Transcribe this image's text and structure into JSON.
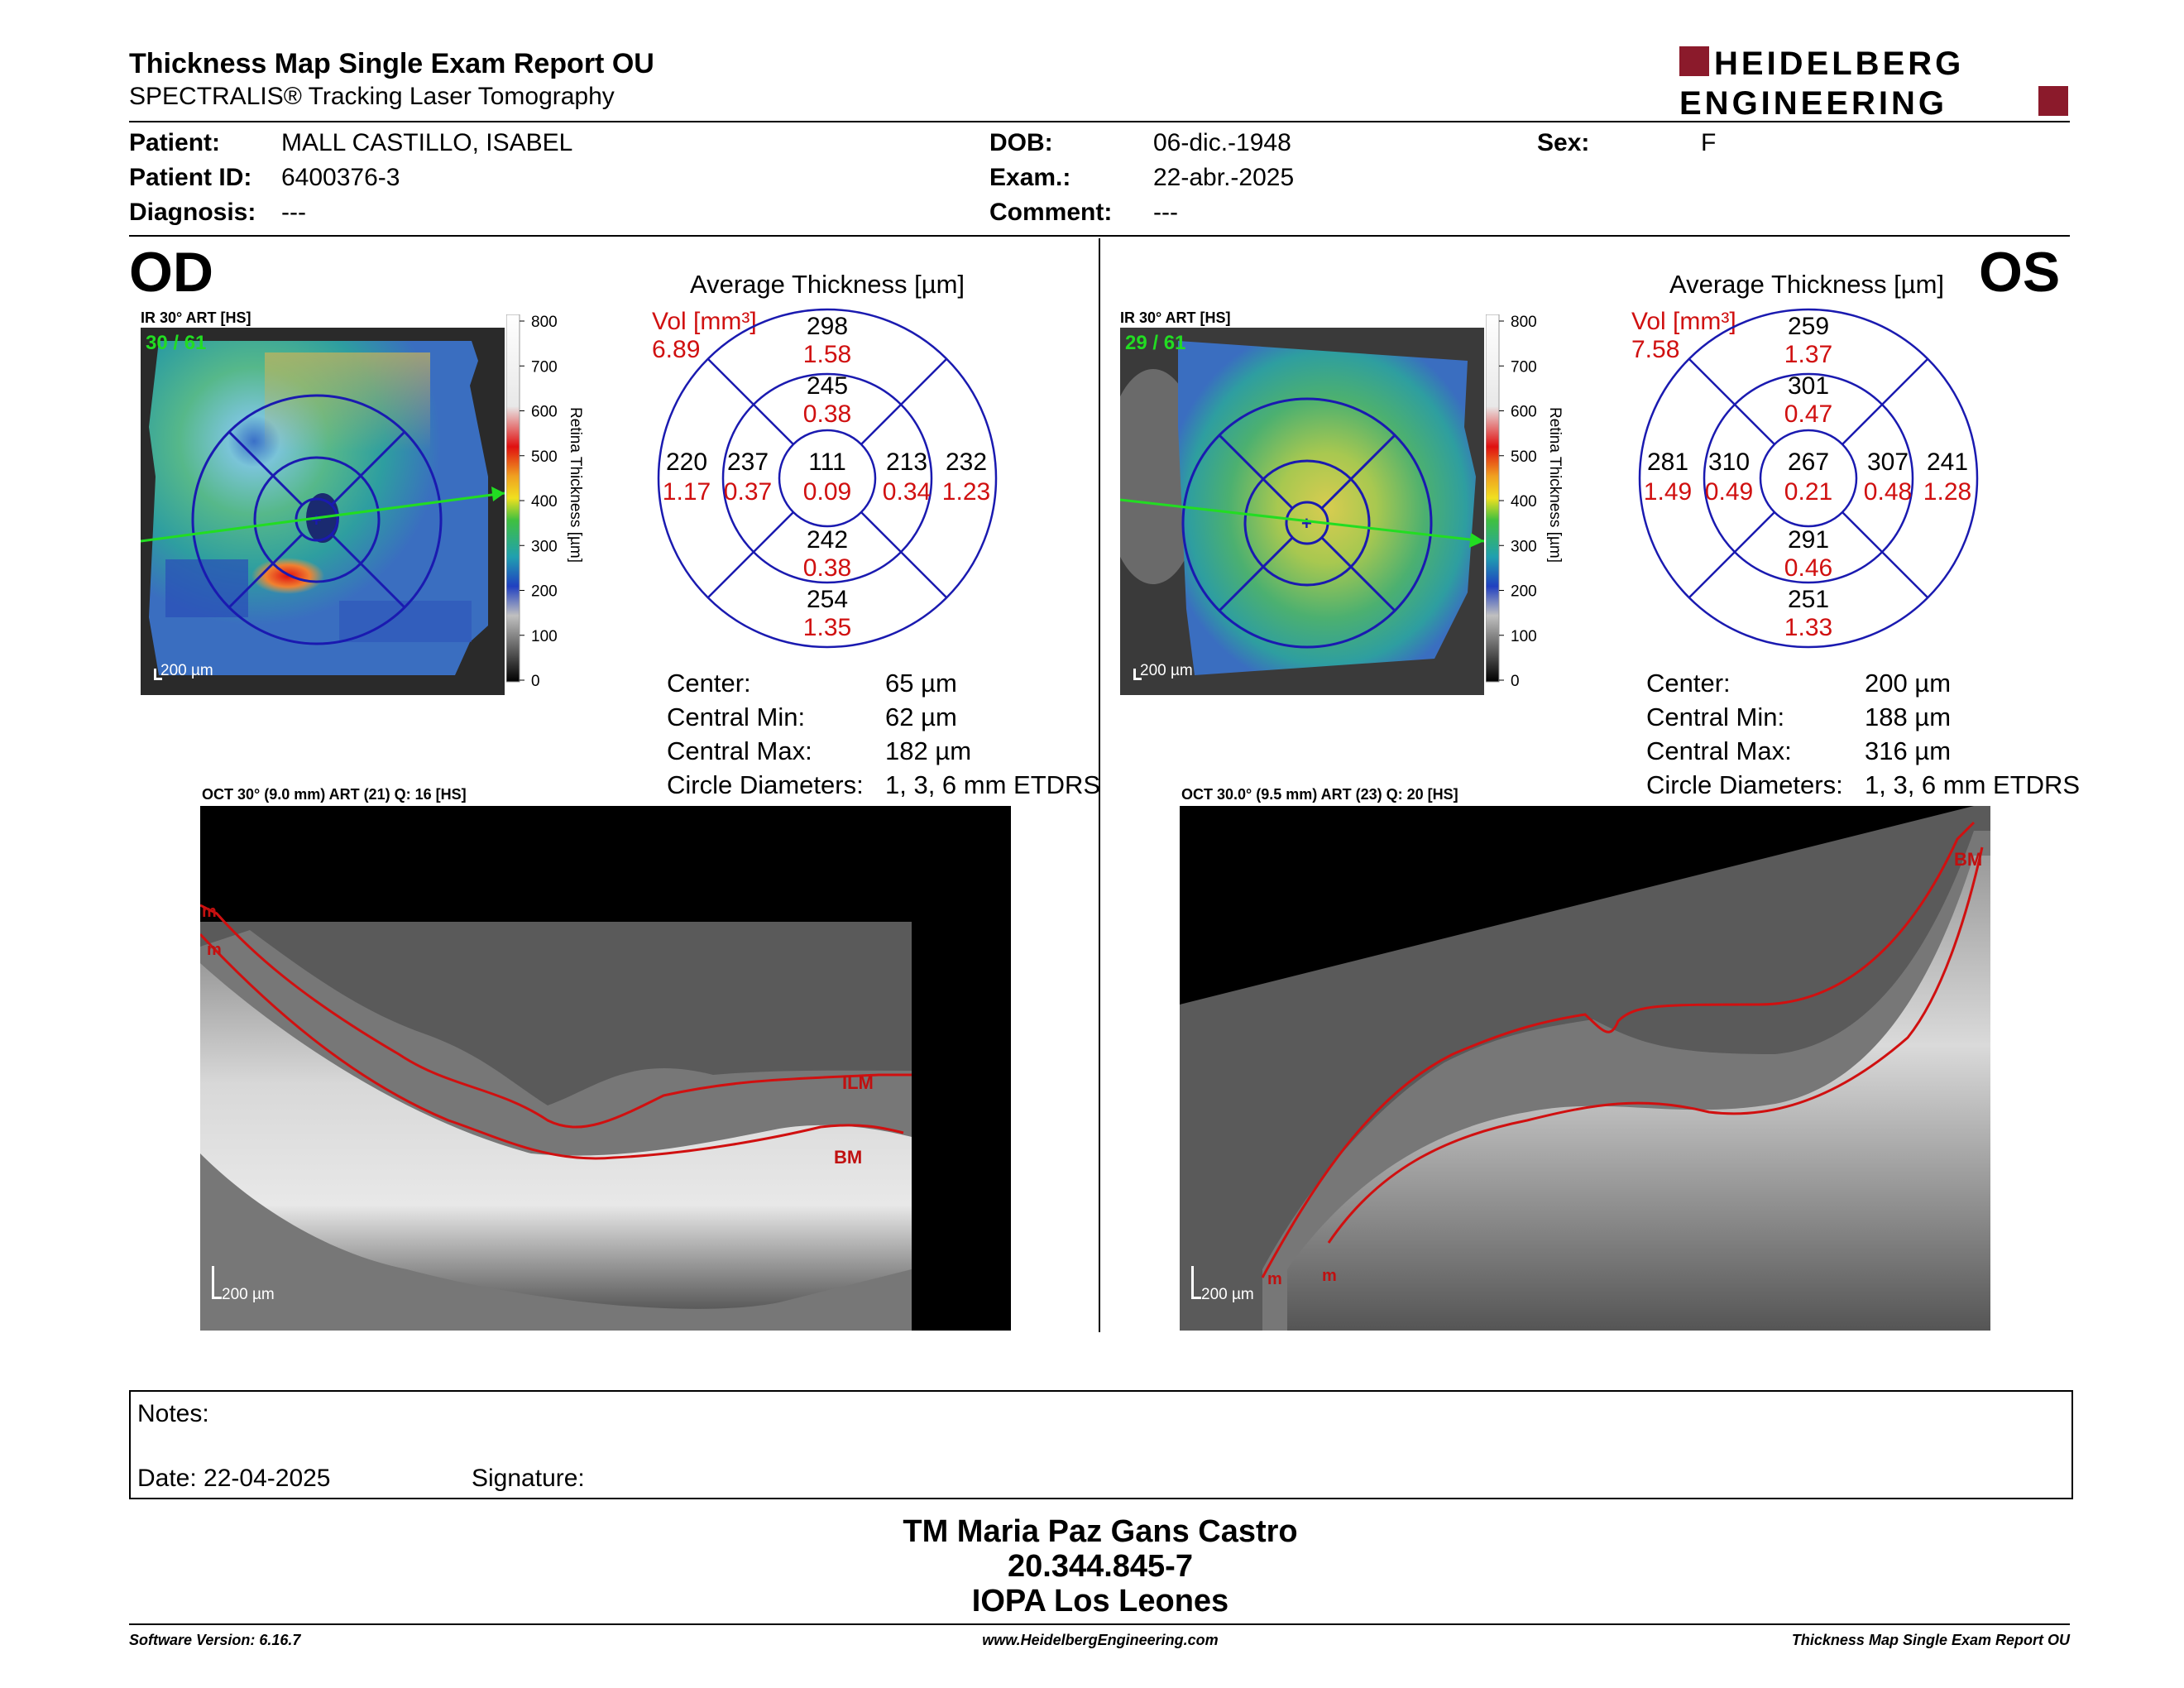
{
  "header": {
    "title": "Thickness Map Single Exam Report OU",
    "subtitle": "SPECTRALIS® Tracking Laser Tomography",
    "logo_line1": "HEIDELBERG",
    "logo_line2": "ENGINEERING",
    "brand_color": "#8b1a2b"
  },
  "patient": {
    "name_label": "Patient:",
    "name": "MALL CASTILLO, ISABEL",
    "id_label": "Patient ID:",
    "id": "6400376-3",
    "diagnosis_label": "Diagnosis:",
    "diagnosis": "---",
    "dob_label": "DOB:",
    "dob": "06-dic.-1948",
    "exam_label": "Exam.:",
    "exam": "22-abr.-2025",
    "comment_label": "Comment:",
    "comment": "---",
    "sex_label": "Sex:",
    "sex": "F"
  },
  "od": {
    "eye": "OD",
    "ir_caption": "IR 30° ART [HS]",
    "frame_counter": "30 / 61",
    "scale_bar": "200 µm",
    "avg_title": "Average Thickness [µm]",
    "vol_label": "Vol [mm³]",
    "vol_total": "6.89",
    "grid": {
      "outer_sup": "298",
      "outer_sup_vol": "1.58",
      "inner_sup": "245",
      "inner_sup_vol": "0.38",
      "outer_nasal": "220",
      "outer_nasal_vol": "1.17",
      "inner_nasal": "237",
      "inner_nasal_vol": "0.37",
      "center": "111",
      "center_vol": "0.09",
      "inner_temp": "213",
      "inner_temp_vol": "0.34",
      "outer_temp": "232",
      "outer_temp_vol": "1.23",
      "inner_inf": "242",
      "inner_inf_vol": "0.38",
      "outer_inf": "254",
      "outer_inf_vol": "1.35"
    },
    "stats": {
      "center_label": "Center:",
      "center": "65 µm",
      "min_label": "Central Min:",
      "min": "62 µm",
      "max_label": "Central Max:",
      "max": "182 µm",
      "diam_label": "Circle Diameters:",
      "diam": "1, 3, 6 mm ETDRS"
    },
    "oct_caption": "OCT 30° (9.0 mm) ART (21) Q: 16 [HS]",
    "oct_scale": "200 µm",
    "layer_top": "ILM",
    "layer_bottom": "BM",
    "marker": "m"
  },
  "os": {
    "eye": "OS",
    "ir_caption": "IR 30° ART [HS]",
    "frame_counter": "29 / 61",
    "scale_bar": "200 µm",
    "avg_title": "Average Thickness [µm]",
    "vol_label": "Vol [mm³]",
    "vol_total": "7.58",
    "grid": {
      "outer_sup": "259",
      "outer_sup_vol": "1.37",
      "inner_sup": "301",
      "inner_sup_vol": "0.47",
      "outer_nasal": "281",
      "outer_nasal_vol": "1.49",
      "inner_nasal": "310",
      "inner_nasal_vol": "0.49",
      "center": "267",
      "center_vol": "0.21",
      "inner_temp": "307",
      "inner_temp_vol": "0.48",
      "outer_temp": "241",
      "outer_temp_vol": "1.28",
      "inner_inf": "291",
      "inner_inf_vol": "0.46",
      "outer_inf": "251",
      "outer_inf_vol": "1.33"
    },
    "stats": {
      "center_label": "Center:",
      "center": "200 µm",
      "min_label": "Central Min:",
      "min": "188 µm",
      "max_label": "Central Max:",
      "max": "316 µm",
      "diam_label": "Circle Diameters:",
      "diam": "1, 3, 6 mm ETDRS"
    },
    "oct_caption": "OCT 30.0° (9.5 mm) ART (23) Q: 20 [HS]",
    "oct_scale": "200 µm",
    "layer_bottom": "BM",
    "marker": "m"
  },
  "colorbar": {
    "ticks": [
      "800",
      "700",
      "600",
      "500",
      "400",
      "300",
      "200",
      "100",
      "0"
    ],
    "title": "Retina Thickness [µm]"
  },
  "notes": {
    "notes_label": "Notes:",
    "date_label": "Date: 22-04-2025",
    "signature_label": "Signature:"
  },
  "signature_block": {
    "line1": "TM Maria Paz Gans Castro",
    "line2": "20.344.845-7",
    "line3": "IOPA Los Leones"
  },
  "footer": {
    "software": "Software Version: 6.16.7",
    "website": "www.HeidelbergEngineering.com",
    "report": "Thickness Map Single Exam Report OU"
  },
  "colors": {
    "value_red": "#d01010",
    "grid_blue": "#1a1ab0",
    "layer_red": "#d01010",
    "scan_green": "#22dd22"
  }
}
